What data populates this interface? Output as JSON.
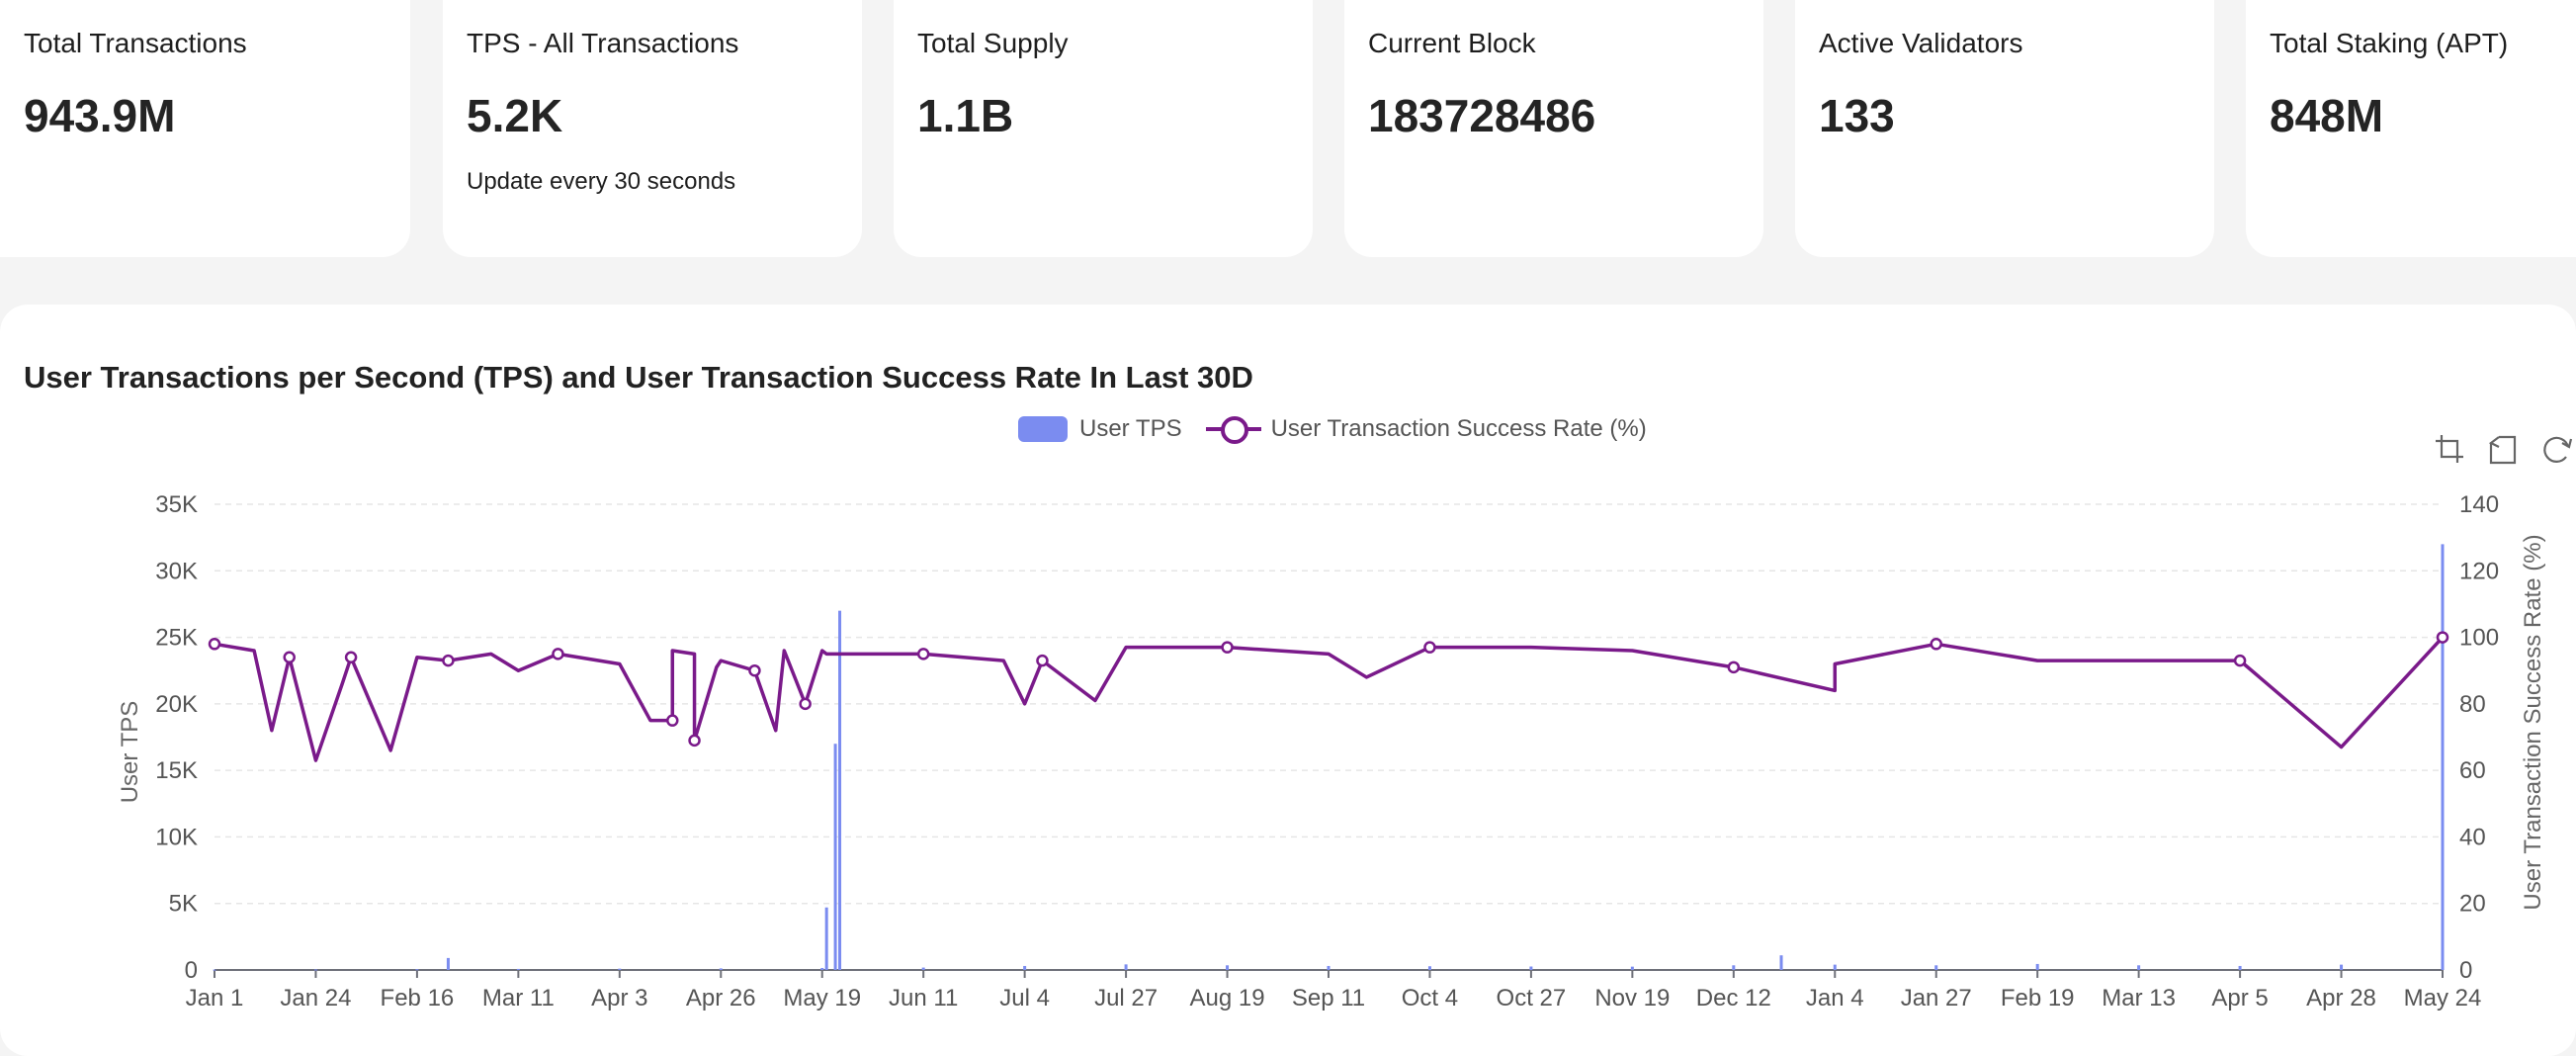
{
  "stats": [
    {
      "label": "Total Transactions",
      "value": "943.9M"
    },
    {
      "label": "TPS - All Transactions",
      "value": "5.2K",
      "note": "Update every 30 seconds"
    },
    {
      "label": "Total Supply",
      "value": "1.1B"
    },
    {
      "label": "Current Block",
      "value": "183728486"
    },
    {
      "label": "Active Validators",
      "value": "133"
    },
    {
      "label": "Total Staking (APT)",
      "value": "848M"
    }
  ],
  "chart": {
    "title": "User Transactions per Second (TPS) and User Transaction Success Rate In Last 30D",
    "legend": {
      "bar": "User TPS",
      "line": "User Transaction Success Rate (%)"
    },
    "toolbox": [
      "zoom-icon",
      "zoom-reset-icon",
      "restore-icon"
    ]
  },
  "chart_data": {
    "type": "bar",
    "title": "User Transactions per Second (TPS) and User Transaction Success Rate In Last 30D",
    "x_tick_labels": [
      "Jan 1",
      "Jan 24",
      "Feb 16",
      "Mar 11",
      "Apr 3",
      "Apr 26",
      "May 19",
      "Jun 11",
      "Jul 4",
      "Jul 27",
      "Aug 19",
      "Sep 11",
      "Oct 4",
      "Oct 27",
      "Nov 19",
      "Dec 12",
      "Jan 4",
      "Jan 27",
      "Feb 19",
      "Mar 13",
      "Apr 5",
      "Apr 28",
      "May 24"
    ],
    "y_left": {
      "label": "User TPS",
      "min": 0,
      "max": 35000,
      "ticks": [
        "0",
        "5K",
        "10K",
        "15K",
        "20K",
        "25K",
        "30K",
        "35K"
      ]
    },
    "y_right": {
      "label": "User Transaction Success Rate (%)",
      "min": 0,
      "max": 140,
      "ticks": [
        "0",
        "20",
        "40",
        "60",
        "80",
        "100",
        "120",
        "140"
      ]
    },
    "grid": true,
    "legend_position": "top-center",
    "colors": {
      "bar": "#7b8cf0",
      "line": "#7a1a8a"
    },
    "series": [
      {
        "name": "User TPS",
        "type": "bar",
        "axis": "left",
        "x": [
          "Jan 1",
          "Jan 24",
          "Feb 16",
          "Mar 11",
          "Apr 3",
          "Apr 26",
          "May 19",
          "Jun 11",
          "Jul 4",
          "Jul 27",
          "Aug 19",
          "Sep 11",
          "Oct 4",
          "Oct 27",
          "Nov 19",
          "Dec 12",
          "Dec 20",
          "Jan 4",
          "Jan 27",
          "Feb 19",
          "Feb 24",
          "Mar 13",
          "Apr 5",
          "Apr 28",
          "May 20",
          "May 22",
          "May 23",
          "May 24"
        ],
        "values": [
          30,
          40,
          60,
          80,
          100,
          120,
          150,
          180,
          300,
          420,
          350,
          300,
          280,
          260,
          250,
          350,
          1100,
          400,
          350,
          450,
          900,
          350,
          300,
          400,
          4700,
          17000,
          27000,
          32000
        ]
      },
      {
        "name": "User Transaction Success Rate (%)",
        "type": "line",
        "axis": "right",
        "x": [
          "Jan 1",
          "Jan 4",
          "Jan 10",
          "Jan 14",
          "Jan 18",
          "Jan 24",
          "Feb 1",
          "Feb 10",
          "Feb 16",
          "Feb 24",
          "Mar 4",
          "Mar 11",
          "Mar 20",
          "Apr 3",
          "Apr 15",
          "Apr 20",
          "Apr 26",
          "May 10",
          "May 19",
          "Jun 11",
          "Jun 30",
          "Jul 4",
          "Jul 8",
          "Jul 20",
          "Jul 27",
          "Aug 19",
          "Sep 11",
          "Sep 20",
          "Oct 4",
          "Oct 27",
          "Nov 19",
          "Dec 12",
          "Jan 4",
          "Jan 27",
          "Jan 30",
          "Feb 19",
          "Mar 13",
          "Apr 5",
          "Apr 10",
          "Apr 15",
          "Apr 20",
          "Apr 25",
          "Apr 28",
          "May 3",
          "May 8",
          "May 15",
          "May 20",
          "May 24"
        ],
        "values": [
          98,
          84,
          96,
          72,
          94,
          63,
          94,
          66,
          94,
          93,
          95,
          90,
          95,
          92,
          75,
          95,
          93,
          96,
          96,
          95,
          93,
          80,
          93,
          81,
          97,
          97,
          95,
          88,
          97,
          97,
          96,
          91,
          92,
          98,
          86,
          93,
          93,
          93,
          75,
          96,
          69,
          91,
          67,
          90,
          72,
          80,
          95,
          100
        ]
      }
    ]
  }
}
